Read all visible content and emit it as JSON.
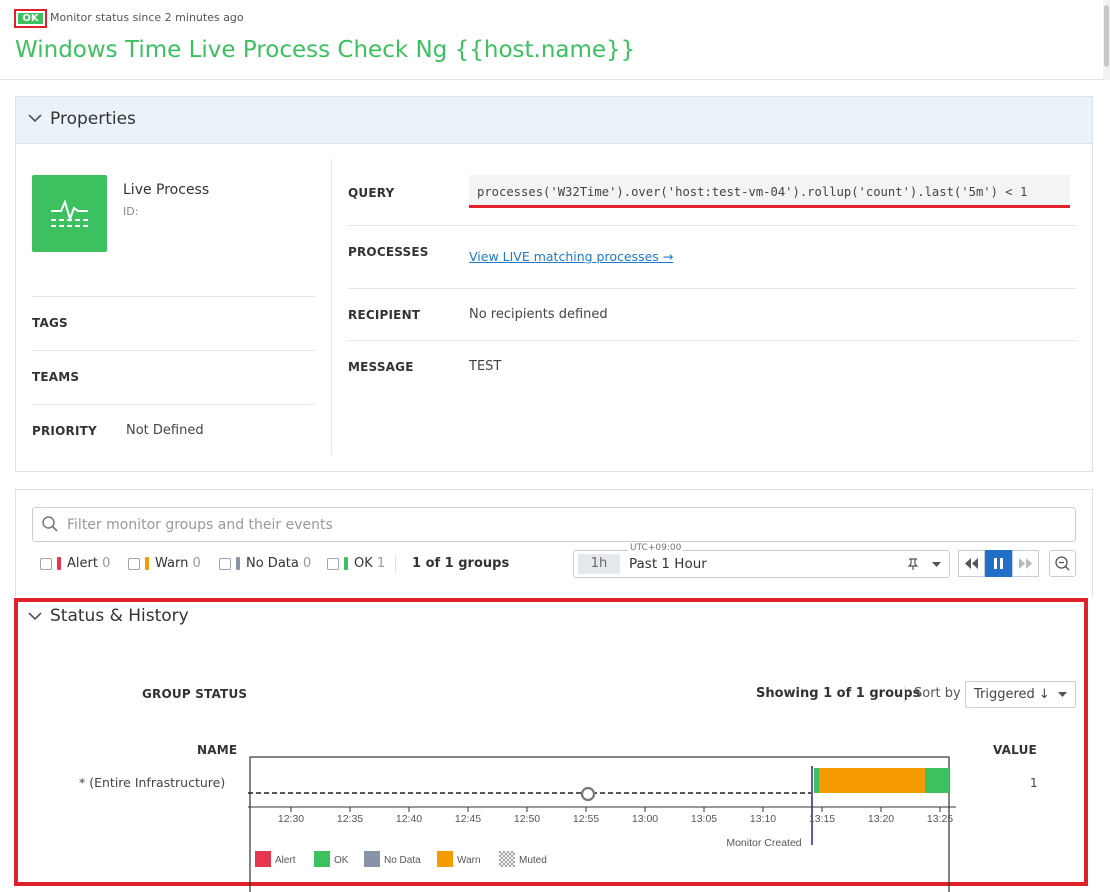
{
  "header": {
    "status_badge": "OK",
    "status_since": "Monitor status since 2 minutes ago",
    "title": "Windows Time Live Process Check Ng {{host.name}}"
  },
  "properties": {
    "section_title": "Properties",
    "monitor_type": "Live Process",
    "id_label": "ID:",
    "tags_label": "TAGS",
    "teams_label": "TEAMS",
    "priority_label": "PRIORITY",
    "priority_value": "Not Defined",
    "query_label": "QUERY",
    "query_value": "processes('W32Time').over('host:test-vm-04').rollup('count').last('5m') < 1",
    "processes_label": "PROCESSES",
    "processes_link": "View LIVE matching processes →",
    "recipient_label": "RECIPIENT",
    "recipient_value": "No recipients defined",
    "message_label": "MESSAGE",
    "message_value": "TEST"
  },
  "filters": {
    "search_placeholder": "Filter monitor groups and their events",
    "alert_label": "Alert",
    "alert_count": "0",
    "warn_label": "Warn",
    "warn_count": "0",
    "nodata_label": "No Data",
    "nodata_count": "0",
    "ok_label": "OK",
    "ok_count": "1",
    "groups_count": "1 of 1 groups",
    "timezone": "UTC+09:00",
    "time_short": "1h",
    "time_range": "Past 1 Hour"
  },
  "status_history": {
    "section_title": "Status & History",
    "group_status_label": "GROUP STATUS",
    "showing": "Showing 1 of 1 groups",
    "sort_by_label": "Sort by",
    "sort_value": "Triggered ↓",
    "name_col": "NAME",
    "value_col": "VALUE",
    "row_name": "* (Entire Infrastructure)",
    "row_value": "1",
    "monitor_created": "Monitor Created",
    "ticks": [
      "12:30",
      "12:35",
      "12:40",
      "12:45",
      "12:50",
      "12:55",
      "13:00",
      "13:05",
      "13:10",
      "13:15",
      "13:20",
      "13:25"
    ],
    "legend": [
      {
        "label": "Alert",
        "color": "#e8364f"
      },
      {
        "label": "OK",
        "color": "#3cc060"
      },
      {
        "label": "No Data",
        "color": "#8893a8"
      },
      {
        "label": "Warn",
        "color": "#f59a00"
      },
      {
        "label": "Muted",
        "color": "pattern"
      }
    ]
  },
  "colors": {
    "ok": "#3cc060",
    "alert": "#e8364f",
    "warn": "#f59a00",
    "nodata": "#8893a8",
    "link": "#1f78c9",
    "highlight": "#e0202a"
  }
}
